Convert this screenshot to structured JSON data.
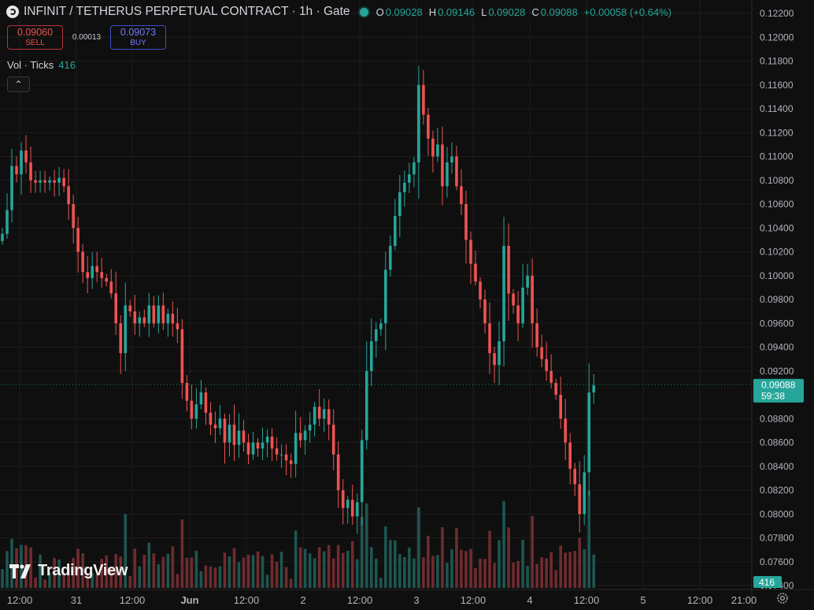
{
  "header": {
    "title": "INFINIT / TETHERUS PERPETUAL CONTRACT · 1h · Gate",
    "ohlc": [
      {
        "key": "O",
        "value": "0.09028"
      },
      {
        "key": "H",
        "value": "0.09146"
      },
      {
        "key": "L",
        "value": "0.09028"
      },
      {
        "key": "C",
        "value": "0.09088"
      }
    ],
    "change": "+0.00058 (+0.64%)"
  },
  "trade": {
    "sell_price": "0.09060",
    "sell_label": "SELL",
    "spread": "0.00013",
    "buy_price": "0.09073",
    "buy_label": "BUY"
  },
  "volume_legend": {
    "label": "Vol · Ticks",
    "value": "416"
  },
  "logo": {
    "text": "TradingView"
  },
  "colors": {
    "up": "#26a69a",
    "down": "#ef5350",
    "background": "#0f0f0f",
    "grid": "#1d1d1d"
  },
  "chart_data": {
    "type": "candlestick",
    "y_ticks": [
      "0.12200",
      "0.12000",
      "0.11800",
      "0.11600",
      "0.11400",
      "0.11200",
      "0.11000",
      "0.10800",
      "0.10600",
      "0.10400",
      "0.10200",
      "0.10000",
      "0.09800",
      "0.09600",
      "0.09400",
      "0.09200",
      "0.08800",
      "0.08600",
      "0.08400",
      "0.08200",
      "0.08000",
      "0.07800",
      "0.07600",
      "0.07400"
    ],
    "x_ticks": [
      "12:00",
      "31",
      "12:00",
      "Jun",
      "12:00",
      "2",
      "12:00",
      "3",
      "12:00",
      "4",
      "12:00",
      "5",
      "12:00",
      "21:00"
    ],
    "last_price": {
      "value": "0.09088",
      "countdown": "59:38"
    },
    "last_volume": "416",
    "ylim": [
      0.0738,
      0.1224
    ],
    "series": [
      {
        "c": 0.1035
      },
      {
        "c": 0.1055
      },
      {
        "c": 0.1092
      },
      {
        "c": 0.1085
      },
      {
        "c": 0.1105
      },
      {
        "c": 0.1095
      },
      {
        "c": 0.108
      },
      {
        "c": 0.1078
      },
      {
        "c": 0.108
      },
      {
        "c": 0.1078
      },
      {
        "c": 0.108
      },
      {
        "c": 0.1078
      },
      {
        "c": 0.1082
      },
      {
        "c": 0.1075
      },
      {
        "c": 0.106
      },
      {
        "c": 0.104
      },
      {
        "c": 0.102
      },
      {
        "c": 0.1003
      },
      {
        "c": 0.0998
      },
      {
        "c": 0.1008
      },
      {
        "c": 0.1003
      },
      {
        "c": 0.0998
      },
      {
        "c": 0.0995
      },
      {
        "c": 0.0985
      },
      {
        "c": 0.096
      },
      {
        "c": 0.0935
      },
      {
        "c": 0.0975
      },
      {
        "c": 0.097
      },
      {
        "c": 0.096
      },
      {
        "c": 0.0965
      },
      {
        "c": 0.096
      },
      {
        "c": 0.0975
      },
      {
        "c": 0.096
      },
      {
        "c": 0.0975
      },
      {
        "c": 0.096
      },
      {
        "c": 0.0968
      },
      {
        "c": 0.096
      },
      {
        "c": 0.0955
      },
      {
        "c": 0.091
      },
      {
        "c": 0.0895
      },
      {
        "c": 0.088
      },
      {
        "c": 0.0892
      },
      {
        "c": 0.0902
      },
      {
        "c": 0.0885
      },
      {
        "c": 0.0875
      },
      {
        "c": 0.0872
      },
      {
        "c": 0.088
      },
      {
        "c": 0.086
      },
      {
        "c": 0.0875
      },
      {
        "c": 0.0858
      },
      {
        "c": 0.087
      },
      {
        "c": 0.086
      },
      {
        "c": 0.085
      },
      {
        "c": 0.086
      },
      {
        "c": 0.0855
      },
      {
        "c": 0.086
      },
      {
        "c": 0.0865
      },
      {
        "c": 0.0855
      },
      {
        "c": 0.085
      },
      {
        "c": 0.085
      },
      {
        "c": 0.0845
      },
      {
        "c": 0.0842
      },
      {
        "c": 0.0868
      },
      {
        "c": 0.0862
      },
      {
        "c": 0.087
      },
      {
        "c": 0.0875
      },
      {
        "c": 0.089
      },
      {
        "c": 0.088
      },
      {
        "c": 0.0888
      },
      {
        "c": 0.0875
      },
      {
        "c": 0.085
      },
      {
        "c": 0.082
      },
      {
        "c": 0.0805
      },
      {
        "c": 0.0812
      },
      {
        "c": 0.0798
      },
      {
        "c": 0.081
      },
      {
        "c": 0.0862
      },
      {
        "c": 0.092
      },
      {
        "c": 0.0945
      },
      {
        "c": 0.0955
      },
      {
        "c": 0.096
      },
      {
        "c": 0.1005
      },
      {
        "c": 0.1025
      },
      {
        "c": 0.105
      },
      {
        "c": 0.107
      },
      {
        "c": 0.1078
      },
      {
        "c": 0.1085
      },
      {
        "c": 0.1095
      },
      {
        "c": 0.116
      },
      {
        "c": 0.1135
      },
      {
        "c": 0.1115
      },
      {
        "c": 0.11
      },
      {
        "c": 0.111
      },
      {
        "c": 0.1075
      },
      {
        "c": 0.1095
      },
      {
        "c": 0.11
      },
      {
        "c": 0.1075
      },
      {
        "c": 0.106
      },
      {
        "c": 0.103
      },
      {
        "c": 0.101
      },
      {
        "c": 0.0995
      },
      {
        "c": 0.098
      },
      {
        "c": 0.096
      },
      {
        "c": 0.0935
      },
      {
        "c": 0.0925
      },
      {
        "c": 0.0945
      },
      {
        "c": 0.1025
      },
      {
        "c": 0.0985
      },
      {
        "c": 0.0975
      },
      {
        "c": 0.096
      },
      {
        "c": 0.099
      },
      {
        "c": 0.1
      },
      {
        "c": 0.096
      },
      {
        "c": 0.094
      },
      {
        "c": 0.093
      },
      {
        "c": 0.092
      },
      {
        "c": 0.091
      },
      {
        "c": 0.09
      },
      {
        "c": 0.088
      },
      {
        "c": 0.086
      },
      {
        "c": 0.0838
      },
      {
        "c": 0.0825
      },
      {
        "c": 0.08
      },
      {
        "c": 0.0835
      },
      {
        "c": 0.0902
      },
      {
        "c": 0.0908
      }
    ]
  }
}
